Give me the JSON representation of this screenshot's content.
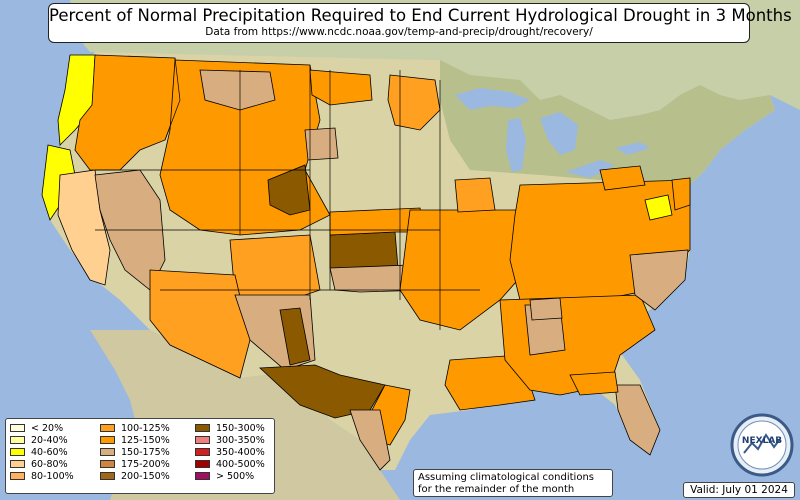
{
  "title": "Percent of Normal Precipitation Required to End Current Hydrological Drought in 3 Months",
  "subtitle": "Data from https://www.ncdc.noaa.gov/temp-and-precip/drought/recovery/",
  "note_line1": "Assuming climatological conditions",
  "note_line2": "for the remainder of the month",
  "valid_text": "Valid: July 01 2024",
  "logo_text": "NEXLAB",
  "colors": {
    "ocean": "#9ab8e0",
    "land": "#d9d3a6",
    "land_green": "#b7c08c",
    "mexico": "#cfc8a0",
    "canada": "#c7cfa8",
    "border": "#000000"
  },
  "legend": [
    {
      "label": "< 20%",
      "color": "#ffffe0"
    },
    {
      "label": "20-40%",
      "color": "#ffffa0"
    },
    {
      "label": "40-60%",
      "color": "#ffff00"
    },
    {
      "label": "60-80%",
      "color": "#ffd090"
    },
    {
      "label": "80-100%",
      "color": "#ffb060"
    },
    {
      "label": "100-125%",
      "color": "#ffa020"
    },
    {
      "label": "125-150%",
      "color": "#ff9900"
    },
    {
      "label": "150-175%",
      "color": "#d8ae80"
    },
    {
      "label": "175-200%",
      "color": "#cd853f"
    },
    {
      "label": "200-150%",
      "color": "#a0671a"
    },
    {
      "label": "150-300%",
      "color": "#8b5a00"
    },
    {
      "label": "300-350%",
      "color": "#f08080"
    },
    {
      "label": "350-400%",
      "color": "#d02020"
    },
    {
      "label": "400-500%",
      "color": "#a00000"
    },
    {
      "label": "> 500%",
      "color": "#a01060"
    }
  ],
  "regions": [
    {
      "name": "washington-west",
      "category": "40-60%"
    },
    {
      "name": "oregon-west",
      "category": "40-60%"
    },
    {
      "name": "california-north-coast",
      "category": "40-60%"
    },
    {
      "name": "california-central",
      "category": "60-80%"
    },
    {
      "name": "pacific-northwest-interior",
      "category": "125-150%"
    },
    {
      "name": "great-basin",
      "category": "150-175%"
    },
    {
      "name": "rockies",
      "category": "125-150%"
    },
    {
      "name": "montana-east",
      "category": "150-175%"
    },
    {
      "name": "wyoming-east",
      "category": "150-300%"
    },
    {
      "name": "kansas-central",
      "category": "150-300%"
    },
    {
      "name": "southwest-arizona-new-mexico",
      "category": "125-150%"
    },
    {
      "name": "west-texas",
      "category": "150-300%"
    },
    {
      "name": "east-texas-gulf",
      "category": "125-150%"
    },
    {
      "name": "gulf-coast-southeast",
      "category": "125-150%"
    },
    {
      "name": "ohio-valley-appalachia",
      "category": "125-150%"
    },
    {
      "name": "florida-peninsula",
      "category": "150-175%"
    },
    {
      "name": "maryland-delaware",
      "category": "40-60%"
    }
  ]
}
